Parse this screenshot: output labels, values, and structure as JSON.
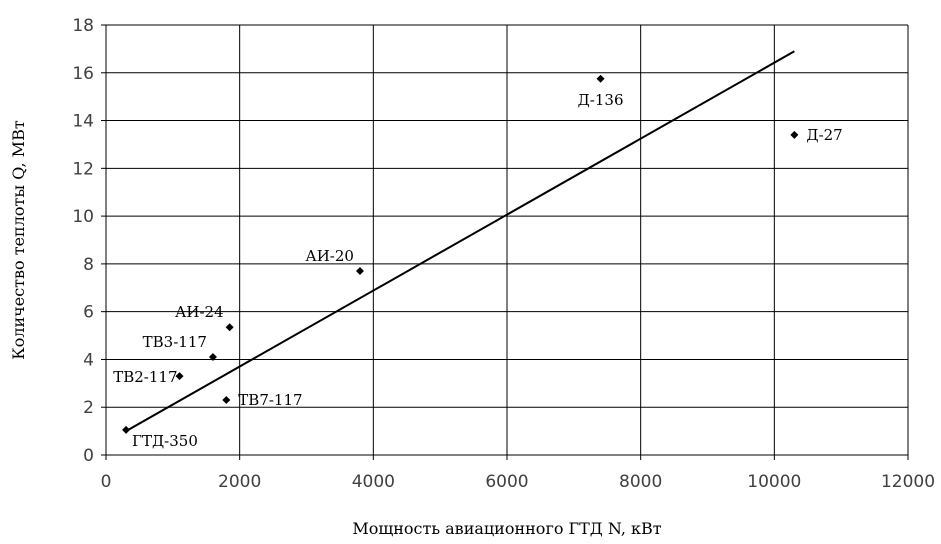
{
  "chart_data": {
    "type": "scatter",
    "title": "",
    "xlabel": "Мощность авиационного ГТД N, кВт",
    "ylabel": "Количество теплоты Q, МВт",
    "xlim": [
      0,
      12000
    ],
    "ylim": [
      0,
      18
    ],
    "x_ticks": [
      "0",
      "2000",
      "4000",
      "6000",
      "8000",
      "10000",
      "12000"
    ],
    "y_ticks": [
      "0",
      "2",
      "4",
      "6",
      "8",
      "10",
      "12",
      "14",
      "16",
      "18"
    ],
    "grid": true,
    "legend": "none",
    "points": [
      {
        "label": "ГТД-350",
        "x": 300,
        "y": 1.05,
        "label_pos": "below-right"
      },
      {
        "label": "ТВ2-117",
        "x": 1100,
        "y": 3.3,
        "label_pos": "left"
      },
      {
        "label": "ТВ3-117",
        "x": 1600,
        "y": 4.1,
        "label_pos": "above-left"
      },
      {
        "label": "ТВ7-117",
        "x": 1800,
        "y": 2.3,
        "label_pos": "right"
      },
      {
        "label": "АИ-24",
        "x": 1850,
        "y": 5.35,
        "label_pos": "above-left"
      },
      {
        "label": "АИ-20",
        "x": 3800,
        "y": 7.7,
        "label_pos": "above-left"
      },
      {
        "label": "Д-136",
        "x": 7400,
        "y": 15.75,
        "label_pos": "below"
      },
      {
        "label": "Д-27",
        "x": 10300,
        "y": 13.4,
        "label_pos": "right"
      }
    ],
    "trendline": {
      "x": [
        300,
        10300
      ],
      "y": [
        1.0,
        16.9
      ]
    },
    "colors": {
      "marker": "#000000",
      "line": "#000000",
      "grid": "#000000",
      "tick_text": "#404040"
    }
  }
}
